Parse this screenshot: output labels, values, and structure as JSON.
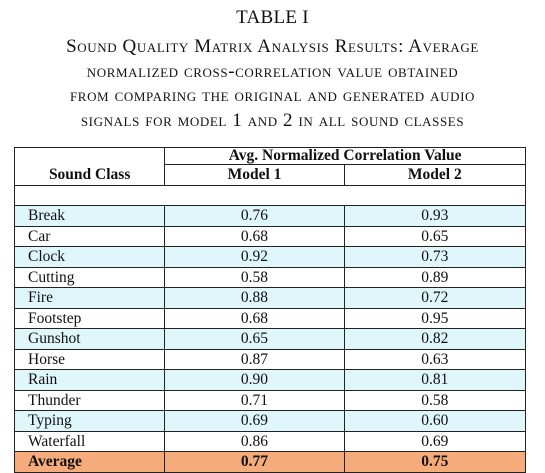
{
  "table_number": "TABLE I",
  "caption_lines": [
    "Sound Quality Matrix Analysis Results: Average",
    "normalized cross-correlation value obtained",
    "from comparing the original and generated audio",
    "signals for model 1 and 2 in all sound classes"
  ],
  "headers": {
    "sound_class": "Sound Class",
    "group": "Avg. Normalized Correlation Value",
    "model1": "Model 1",
    "model2": "Model 2"
  },
  "rows": [
    {
      "name": "Break",
      "model1": "0.76",
      "model2": "0.93"
    },
    {
      "name": "Car",
      "model1": "0.68",
      "model2": "0.65"
    },
    {
      "name": "Clock",
      "model1": "0.92",
      "model2": "0.73"
    },
    {
      "name": "Cutting",
      "model1": "0.58",
      "model2": "0.89"
    },
    {
      "name": "Fire",
      "model1": "0.88",
      "model2": "0.72"
    },
    {
      "name": "Footstep",
      "model1": "0.68",
      "model2": "0.95"
    },
    {
      "name": "Gunshot",
      "model1": "0.65",
      "model2": "0.82"
    },
    {
      "name": "Horse",
      "model1": "0.87",
      "model2": "0.63"
    },
    {
      "name": "Rain",
      "model1": "0.90",
      "model2": "0.81"
    },
    {
      "name": "Thunder",
      "model1": "0.71",
      "model2": "0.58"
    },
    {
      "name": "Typing",
      "model1": "0.69",
      "model2": "0.60"
    },
    {
      "name": "Waterfall",
      "model1": "0.86",
      "model2": "0.69"
    }
  ],
  "average": {
    "name": "Average",
    "model1": "0.77",
    "model2": "0.75"
  },
  "colors": {
    "row_alt": "#dff6fb",
    "row_plain": "#ffffff",
    "average_row": "#f5ab7a"
  }
}
